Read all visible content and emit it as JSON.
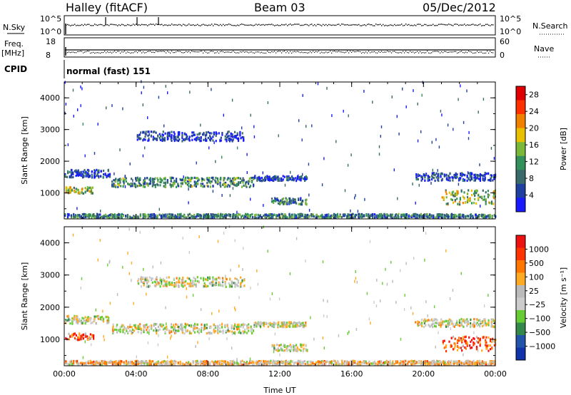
{
  "header": {
    "station": "Halley (fitACF)",
    "beam": "Beam 03",
    "date": "05/Dec/2012"
  },
  "panel_labels": {
    "nsky": "N.Sky",
    "nsearch": "N.Search",
    "freq_top": "Freq.",
    "freq_unit": "[MHz]",
    "nave": "Nave",
    "cpid": "CPID",
    "cpid_value": "normal (fast) 151",
    "nsky_ticks": [
      "10^5",
      "10^0"
    ],
    "nsearch_ticks": [
      "10^5",
      "10^0"
    ],
    "freq_ticks": [
      "18",
      "8"
    ],
    "nave_ticks": [
      "60",
      "0"
    ]
  },
  "colors": {
    "power": [
      "#1a1aff",
      "#2040a0",
      "#3a6a6a",
      "#33905a",
      "#7ab83a",
      "#e8c000",
      "#f08000",
      "#ff3000",
      "#e00000"
    ],
    "velocity": [
      "#ee1111",
      "#ff3300",
      "#ff7700",
      "#ffaa22",
      "#bbbbbb",
      "#cccccc",
      "#66cc33",
      "#33884a",
      "#2255aa",
      "#1133aa"
    ]
  },
  "chart_data": [
    {
      "type": "heatmap",
      "name": "power",
      "ylabel": "Slant Range [km]",
      "xlabel": "",
      "yticks": [
        1000,
        2000,
        3000,
        4000
      ],
      "ylim": [
        180,
        4500
      ],
      "xticks": [
        "00:00",
        "04:00",
        "08:00",
        "12:00",
        "16:00",
        "20:00",
        "00:00"
      ],
      "xlim_hours": [
        0,
        24
      ],
      "colorbar": {
        "label": "Power [dB]",
        "ticks": [
          "4",
          "8",
          "12",
          "16",
          "20",
          "24",
          "28"
        ],
        "range": [
          0,
          30
        ]
      },
      "bands": [
        {
          "t0": 0.0,
          "t1": 1.6,
          "r0": 950,
          "r1": 1150,
          "level": 0.5
        },
        {
          "t0": 0.0,
          "t1": 2.5,
          "r0": 1450,
          "r1": 1700,
          "level": 0.15
        },
        {
          "t0": 2.6,
          "t1": 10.5,
          "r0": 1150,
          "r1": 1450,
          "level": 0.35
        },
        {
          "t0": 10.5,
          "t1": 13.5,
          "r0": 1350,
          "r1": 1500,
          "level": 0.15
        },
        {
          "t0": 4.0,
          "t1": 10.0,
          "r0": 2600,
          "r1": 2900,
          "level": 0.1
        },
        {
          "t0": 19.5,
          "t1": 24.0,
          "r0": 1350,
          "r1": 1600,
          "level": 0.15
        },
        {
          "t0": 21.0,
          "t1": 24.0,
          "r0": 600,
          "r1": 1050,
          "level": 0.5
        },
        {
          "t0": 11.5,
          "t1": 13.5,
          "r0": 600,
          "r1": 800,
          "level": 0.3
        },
        {
          "t0": 0.0,
          "t1": 24.0,
          "r0": 180,
          "r1": 300,
          "level": 0.3
        }
      ]
    },
    {
      "type": "heatmap",
      "name": "velocity",
      "ylabel": "Slant Range [km]",
      "xlabel": "Time UT",
      "yticks": [
        1000,
        2000,
        3000,
        4000
      ],
      "ylim": [
        180,
        4500
      ],
      "xticks": [
        "00:00",
        "04:00",
        "08:00",
        "12:00",
        "16:00",
        "20:00",
        "00:00"
      ],
      "xlim_hours": [
        0,
        24
      ],
      "colorbar": {
        "label": "Velocity [m s⁻¹]",
        "ticks": [
          "1000",
          "500",
          "100",
          "25",
          "−25",
          "−100",
          "−500",
          "−1000"
        ],
        "range": [
          -1000,
          1000
        ]
      },
      "bands": [
        {
          "t0": 0.0,
          "t1": 1.6,
          "r0": 950,
          "r1": 1150,
          "level": 0.2
        },
        {
          "t0": 0.0,
          "t1": 2.5,
          "r0": 1450,
          "r1": 1700,
          "level": 0.5
        },
        {
          "t0": 2.6,
          "t1": 10.5,
          "r0": 1150,
          "r1": 1450,
          "level": 0.5
        },
        {
          "t0": 10.5,
          "t1": 13.5,
          "r0": 1350,
          "r1": 1500,
          "level": 0.5
        },
        {
          "t0": 4.0,
          "t1": 10.0,
          "r0": 2600,
          "r1": 2900,
          "level": 0.5
        },
        {
          "t0": 19.5,
          "t1": 24.0,
          "r0": 1350,
          "r1": 1600,
          "level": 0.5
        },
        {
          "t0": 21.0,
          "t1": 24.0,
          "r0": 600,
          "r1": 1050,
          "level": 0.2
        },
        {
          "t0": 11.5,
          "t1": 13.5,
          "r0": 600,
          "r1": 800,
          "level": 0.5
        },
        {
          "t0": 0.0,
          "t1": 24.0,
          "r0": 180,
          "r1": 300,
          "level": 0.4
        }
      ]
    }
  ]
}
